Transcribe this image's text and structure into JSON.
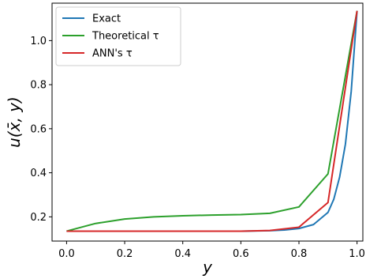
{
  "chart_data": {
    "type": "line",
    "title": "",
    "xlabel": "y",
    "ylabel": "u(x̄, y)",
    "xlim": [
      -0.05,
      1.02
    ],
    "ylim": [
      0.09,
      1.17
    ],
    "xticks": [
      0.0,
      0.2,
      0.4,
      0.6,
      0.8,
      1.0
    ],
    "xtick_labels": [
      "0.0",
      "0.2",
      "0.4",
      "0.6",
      "0.8",
      "1.0"
    ],
    "yticks": [
      0.2,
      0.4,
      0.6,
      0.8,
      1.0
    ],
    "ytick_labels": [
      "0.2",
      "0.4",
      "0.6",
      "0.8",
      "1.0"
    ],
    "grid": false,
    "legend_position": "top-left",
    "series": [
      {
        "name": "Exact",
        "color": "#1f77b4",
        "x": [
          0.0,
          0.1,
          0.2,
          0.3,
          0.4,
          0.5,
          0.6,
          0.7,
          0.75,
          0.8,
          0.85,
          0.9,
          0.92,
          0.94,
          0.96,
          0.98,
          1.0
        ],
        "y": [
          0.135,
          0.135,
          0.135,
          0.135,
          0.135,
          0.135,
          0.135,
          0.137,
          0.14,
          0.147,
          0.165,
          0.22,
          0.28,
          0.38,
          0.53,
          0.77,
          1.135
        ]
      },
      {
        "name": "Theoretical τ",
        "color": "#2ca02c",
        "x": [
          0.0,
          0.1,
          0.2,
          0.3,
          0.4,
          0.5,
          0.6,
          0.7,
          0.8,
          0.9,
          1.0
        ],
        "y": [
          0.135,
          0.17,
          0.19,
          0.2,
          0.205,
          0.208,
          0.21,
          0.216,
          0.245,
          0.395,
          1.135
        ]
      },
      {
        "name": "ANN's τ",
        "color": "#d62728",
        "x": [
          0.0,
          0.1,
          0.2,
          0.3,
          0.4,
          0.5,
          0.6,
          0.7,
          0.8,
          0.9,
          1.0
        ],
        "y": [
          0.135,
          0.135,
          0.135,
          0.135,
          0.135,
          0.135,
          0.135,
          0.138,
          0.153,
          0.265,
          1.135
        ]
      }
    ]
  }
}
